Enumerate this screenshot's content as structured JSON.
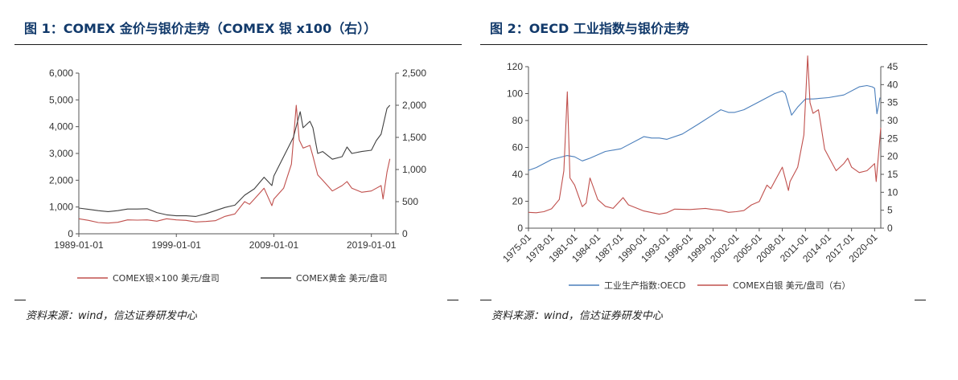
{
  "figure1": {
    "title": "图 1：COMEX 金价与银价走势（COMEX 银 x100（右））",
    "source": "资料来源：wind，信达证券研发中心",
    "chart_data": {
      "type": "line",
      "x_ticks": [
        "1989-01-01",
        "1999-01-01",
        "2009-01-01",
        "2019-01-01"
      ],
      "xlim": [
        1989.0,
        2021.5
      ],
      "y_left_ticks": [
        "0",
        "1,000",
        "2,000",
        "3,000",
        "4,000",
        "5,000",
        "6,000"
      ],
      "ylim_left": [
        0,
        6000
      ],
      "y_right_ticks": [
        "0",
        "500",
        "1,000",
        "1,500",
        "2,000",
        "2,500"
      ],
      "ylim_right": [
        0,
        2500
      ],
      "grid": false,
      "legend_position": "bottom",
      "series": [
        {
          "name": "COMEX银×100 美元/盘司",
          "axis": "left",
          "color": "#c0504d",
          "x": [
            1989.0,
            1990.0,
            1991.0,
            1992.0,
            1993.0,
            1994.0,
            1995.0,
            1996.0,
            1997.0,
            1998.0,
            1999.0,
            2000.0,
            2001.0,
            2002.0,
            2003.0,
            2004.0,
            2005.0,
            2006.0,
            2006.5,
            2007.0,
            2008.0,
            2008.8,
            2009.0,
            2010.0,
            2010.8,
            2011.3,
            2011.6,
            2012.0,
            2012.7,
            2013.0,
            2013.5,
            2014.0,
            2015.0,
            2016.0,
            2016.5,
            2017.0,
            2018.0,
            2019.0,
            2019.5,
            2020.0,
            2020.2,
            2020.6,
            2020.9
          ],
          "y": [
            560,
            500,
            420,
            400,
            430,
            520,
            510,
            520,
            470,
            560,
            520,
            500,
            440,
            460,
            490,
            650,
            740,
            1200,
            1100,
            1300,
            1700,
            1050,
            1300,
            1700,
            2600,
            4800,
            3500,
            3200,
            3300,
            2900,
            2200,
            2000,
            1600,
            1800,
            1950,
            1700,
            1550,
            1600,
            1700,
            1800,
            1300,
            2300,
            2800
          ]
        },
        {
          "name": "COMEX黄金 美元/盘司",
          "axis": "right",
          "color": "#404040",
          "x": [
            1989.0,
            1990.0,
            1991.0,
            1992.0,
            1993.0,
            1994.0,
            1995.0,
            1996.0,
            1997.0,
            1998.0,
            1999.0,
            2000.0,
            2001.0,
            2002.0,
            2003.0,
            2004.0,
            2005.0,
            2006.0,
            2007.0,
            2008.0,
            2008.8,
            2009.0,
            2010.0,
            2011.0,
            2011.7,
            2012.0,
            2012.7,
            2013.0,
            2013.5,
            2014.0,
            2015.0,
            2016.0,
            2016.5,
            2017.0,
            2018.0,
            2019.0,
            2019.5,
            2020.0,
            2020.6,
            2020.9
          ],
          "y": [
            400,
            380,
            360,
            345,
            360,
            385,
            385,
            390,
            330,
            295,
            280,
            280,
            270,
            310,
            360,
            410,
            445,
            600,
            700,
            880,
            750,
            900,
            1200,
            1500,
            1900,
            1650,
            1750,
            1650,
            1250,
            1280,
            1160,
            1200,
            1350,
            1250,
            1280,
            1300,
            1450,
            1550,
            1950,
            2000
          ]
        }
      ]
    }
  },
  "figure2": {
    "title": "图 2：OECD 工业指数与银价走势",
    "source": "资料来源：wind，信达证券研发中心",
    "chart_data": {
      "type": "line",
      "x_ticks": [
        "1975-01",
        "1978-01",
        "1981-01",
        "1984-01",
        "1987-01",
        "1990-01",
        "1993-01",
        "1996-01",
        "1999-01",
        "2002-01",
        "2005-01",
        "2008-01",
        "2011-01",
        "2014-01",
        "2017-01",
        "2020-01"
      ],
      "xlim": [
        1975.0,
        2020.8
      ],
      "y_left_ticks": [
        "0",
        "20",
        "40",
        "60",
        "80",
        "100",
        "120"
      ],
      "ylim_left": [
        0,
        120
      ],
      "y_right_ticks": [
        "0",
        "5",
        "10",
        "15",
        "20",
        "25",
        "30",
        "35",
        "40",
        "45"
      ],
      "ylim_right": [
        0,
        45
      ],
      "grid": false,
      "legend_position": "bottom",
      "series": [
        {
          "name": "工业生产指数:OECD",
          "axis": "left",
          "color": "#4a7ebb",
          "x": [
            1975.0,
            1976.0,
            1978.0,
            1980.0,
            1981.0,
            1982.0,
            1983.0,
            1985.0,
            1987.0,
            1990.0,
            1991.0,
            1992.0,
            1993.0,
            1995.0,
            1997.0,
            2000.0,
            2001.0,
            2001.8,
            2003.0,
            2005.0,
            2007.0,
            2008.0,
            2008.4,
            2009.2,
            2010.0,
            2011.0,
            2012.0,
            2014.0,
            2016.0,
            2018.0,
            2019.0,
            2019.7,
            2020.0,
            2020.3,
            2020.7
          ],
          "y": [
            43,
            45,
            51,
            54,
            53,
            50,
            52,
            57,
            59,
            68,
            67,
            67,
            66,
            70,
            77,
            88,
            86,
            86,
            88,
            94,
            100,
            102,
            100,
            84,
            90,
            96,
            96,
            97,
            99,
            105,
            106,
            105,
            104,
            85,
            97
          ]
        },
        {
          "name": "COMEX白银 美元/盘司（右）",
          "axis": "right",
          "color": "#c0504d",
          "x": [
            1975.0,
            1976.0,
            1977.0,
            1978.0,
            1979.0,
            1979.6,
            1980.05,
            1980.4,
            1981.0,
            1982.0,
            1982.5,
            1983.0,
            1984.0,
            1985.0,
            1986.0,
            1987.3,
            1988.0,
            1990.0,
            1992.0,
            1993.0,
            1994.0,
            1996.0,
            1998.0,
            1999.0,
            2000.0,
            2001.0,
            2002.0,
            2003.0,
            2004.0,
            2005.0,
            2006.0,
            2006.5,
            2007.0,
            2008.0,
            2008.8,
            2009.0,
            2010.0,
            2010.8,
            2011.3,
            2011.6,
            2012.0,
            2012.7,
            2013.0,
            2013.5,
            2014.0,
            2015.0,
            2016.0,
            2016.5,
            2017.0,
            2018.0,
            2019.0,
            2019.5,
            2020.0,
            2020.2,
            2020.6,
            2020.8
          ],
          "y": [
            4.4,
            4.3,
            4.6,
            5.4,
            8,
            16,
            38,
            14,
            12,
            6,
            7,
            14,
            8,
            6.1,
            5.5,
            8.5,
            6.5,
            4.8,
            3.9,
            4.3,
            5.3,
            5.2,
            5.5,
            5.2,
            5.0,
            4.4,
            4.6,
            4.9,
            6.5,
            7.4,
            12,
            11,
            13,
            17,
            10.5,
            13,
            17,
            26,
            48,
            35,
            32,
            33,
            29,
            22,
            20,
            16,
            18,
            19.5,
            17,
            15.5,
            16,
            17,
            18,
            13,
            23,
            28
          ]
        }
      ]
    }
  }
}
